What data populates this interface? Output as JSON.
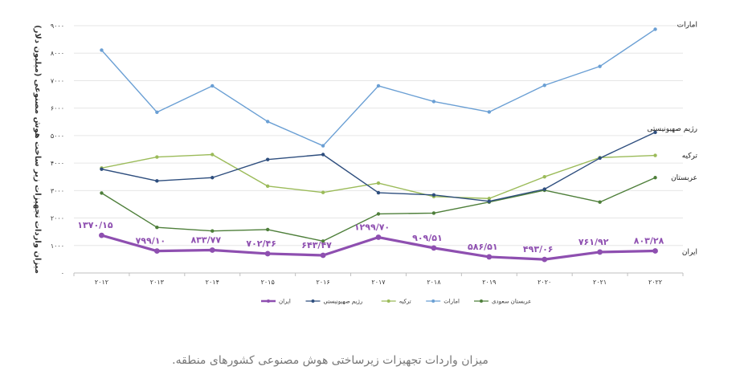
{
  "chart_data": {
    "type": "line",
    "ylabel": "میزان واردات تجهیزات زیر ساخت هوش مصنوعی (میلیون دلار)",
    "ylim": [
      0,
      9000
    ],
    "yticks": [
      "۰",
      "۱۰۰۰",
      "۲۰۰۰",
      "۳۰۰۰",
      "۴۰۰۰",
      "۵۰۰۰",
      "۶۰۰۰",
      "۷۰۰۰",
      "۸۰۰۰",
      "۹۰۰۰"
    ],
    "ytick_values": [
      0,
      1000,
      2000,
      3000,
      4000,
      5000,
      6000,
      7000,
      8000,
      9000
    ],
    "categories": [
      "۲۰۱۲",
      "۲۰۱۳",
      "۲۰۱۴",
      "۲۰۱۵",
      "۲۰۱۶",
      "۲۰۱۷",
      "۲۰۱۸",
      "۲۰۱۹",
      "۲۰۲۰",
      "۲۰۲۱",
      "۲۰۲۲"
    ],
    "grid": "horizontal",
    "legend_position": "bottom",
    "series": [
      {
        "name": "ایران",
        "color": "#8e4fb0",
        "values": [
          1370.15,
          799.1,
          833.77,
          702.46,
          643.47,
          1299.7,
          909.51,
          586.51,
          493.06,
          761.92,
          803.28
        ],
        "data_labels": [
          "۱۳۷۰/۱۵",
          "۷۹۹/۱۰",
          "۸۳۳/۷۷",
          "۷۰۲/۴۶",
          "۶۴۳/۴۷",
          "۱۲۹۹/۷۰",
          "۹۰۹/۵۱",
          "۵۸۶/۵۱",
          "۴۹۳/۰۶",
          "۷۶۱/۹۲",
          "۸۰۳/۲۸"
        ]
      },
      {
        "name": "رژیم صهیونیستی",
        "color": "#2e4e7e",
        "values": [
          3780,
          3350,
          3470,
          4130,
          4310,
          2920,
          2840,
          2610,
          3050,
          4180,
          5120
        ]
      },
      {
        "name": "ترکیه",
        "color": "#9bbb59",
        "values": [
          3820,
          4220,
          4310,
          3160,
          2930,
          3270,
          2780,
          2710,
          3500,
          4200,
          4280
        ]
      },
      {
        "name": "امارات",
        "color": "#6a9fd4",
        "values": [
          8110,
          5850,
          6810,
          5510,
          4630,
          6810,
          6240,
          5860,
          6830,
          7520,
          8870
        ]
      },
      {
        "name": "عربستان سعودی",
        "color": "#4e7f3a",
        "values": [
          2910,
          1660,
          1530,
          1580,
          1160,
          2150,
          2180,
          2580,
          3010,
          2580,
          3470
        ]
      }
    ],
    "end_labels": [
      {
        "series": 3,
        "text": "امارات"
      },
      {
        "series": 1,
        "text": "رژیم صهیونیستی"
      },
      {
        "series": 2,
        "text": "ترکیه"
      },
      {
        "series": 4,
        "text": "عربستان"
      },
      {
        "series": 0,
        "text": "ایران"
      }
    ],
    "legend_order": [
      0,
      1,
      2,
      3,
      4
    ]
  },
  "caption": "میزان واردات تجهیزات زیرساختی هوش مصنوعی کشورهای منطقه."
}
